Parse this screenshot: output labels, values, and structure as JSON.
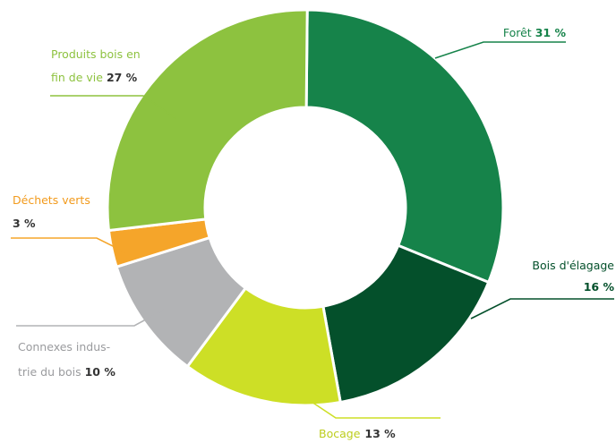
{
  "chart_data": {
    "type": "pie",
    "title": "",
    "slices": [
      {
        "name": "Forêt",
        "value": 31,
        "pct_label": "31 %",
        "color": "#16834a",
        "label_color": "#16834a"
      },
      {
        "name": "Bois d'élagage",
        "value": 16,
        "pct_label": "16 %",
        "color": "#04502b",
        "label_color": "#04502b"
      },
      {
        "name": "Bocage",
        "value": 13,
        "pct_label": "13 %",
        "color": "#cddf26",
        "label_color": "#bccd1c"
      },
      {
        "name": "Connexes industrie du bois",
        "value": 10,
        "pct_label": "10 %",
        "color": "#b2b3b5",
        "label_color": "#9a9b9e"
      },
      {
        "name": "Déchets verts",
        "value": 3,
        "pct_label": "3 %",
        "color": "#f5a52a",
        "label_color": "#f29a1c"
      },
      {
        "name": "Produits bois en fin de vie",
        "value": 27,
        "pct_label": "27 %",
        "color": "#8dc23f",
        "label_color": "#8dc23f"
      }
    ],
    "labels": {
      "foret": {
        "line1": "Forêt",
        "pct": "31 %"
      },
      "elagage": {
        "line1": "Bois d'élagage",
        "pct": "16 %"
      },
      "bocage": {
        "line1": "Bocage",
        "pct": "13 %"
      },
      "connexes": {
        "line1": "Connexes indus-",
        "line2": "trie du bois",
        "pct": "10 %"
      },
      "dechets": {
        "line1": "Déchets verts",
        "pct": "3 %"
      },
      "produits": {
        "line1": "Produits bois en",
        "line2": "fin de vie",
        "pct": "27 %"
      }
    },
    "donut": true,
    "legend": "none"
  }
}
